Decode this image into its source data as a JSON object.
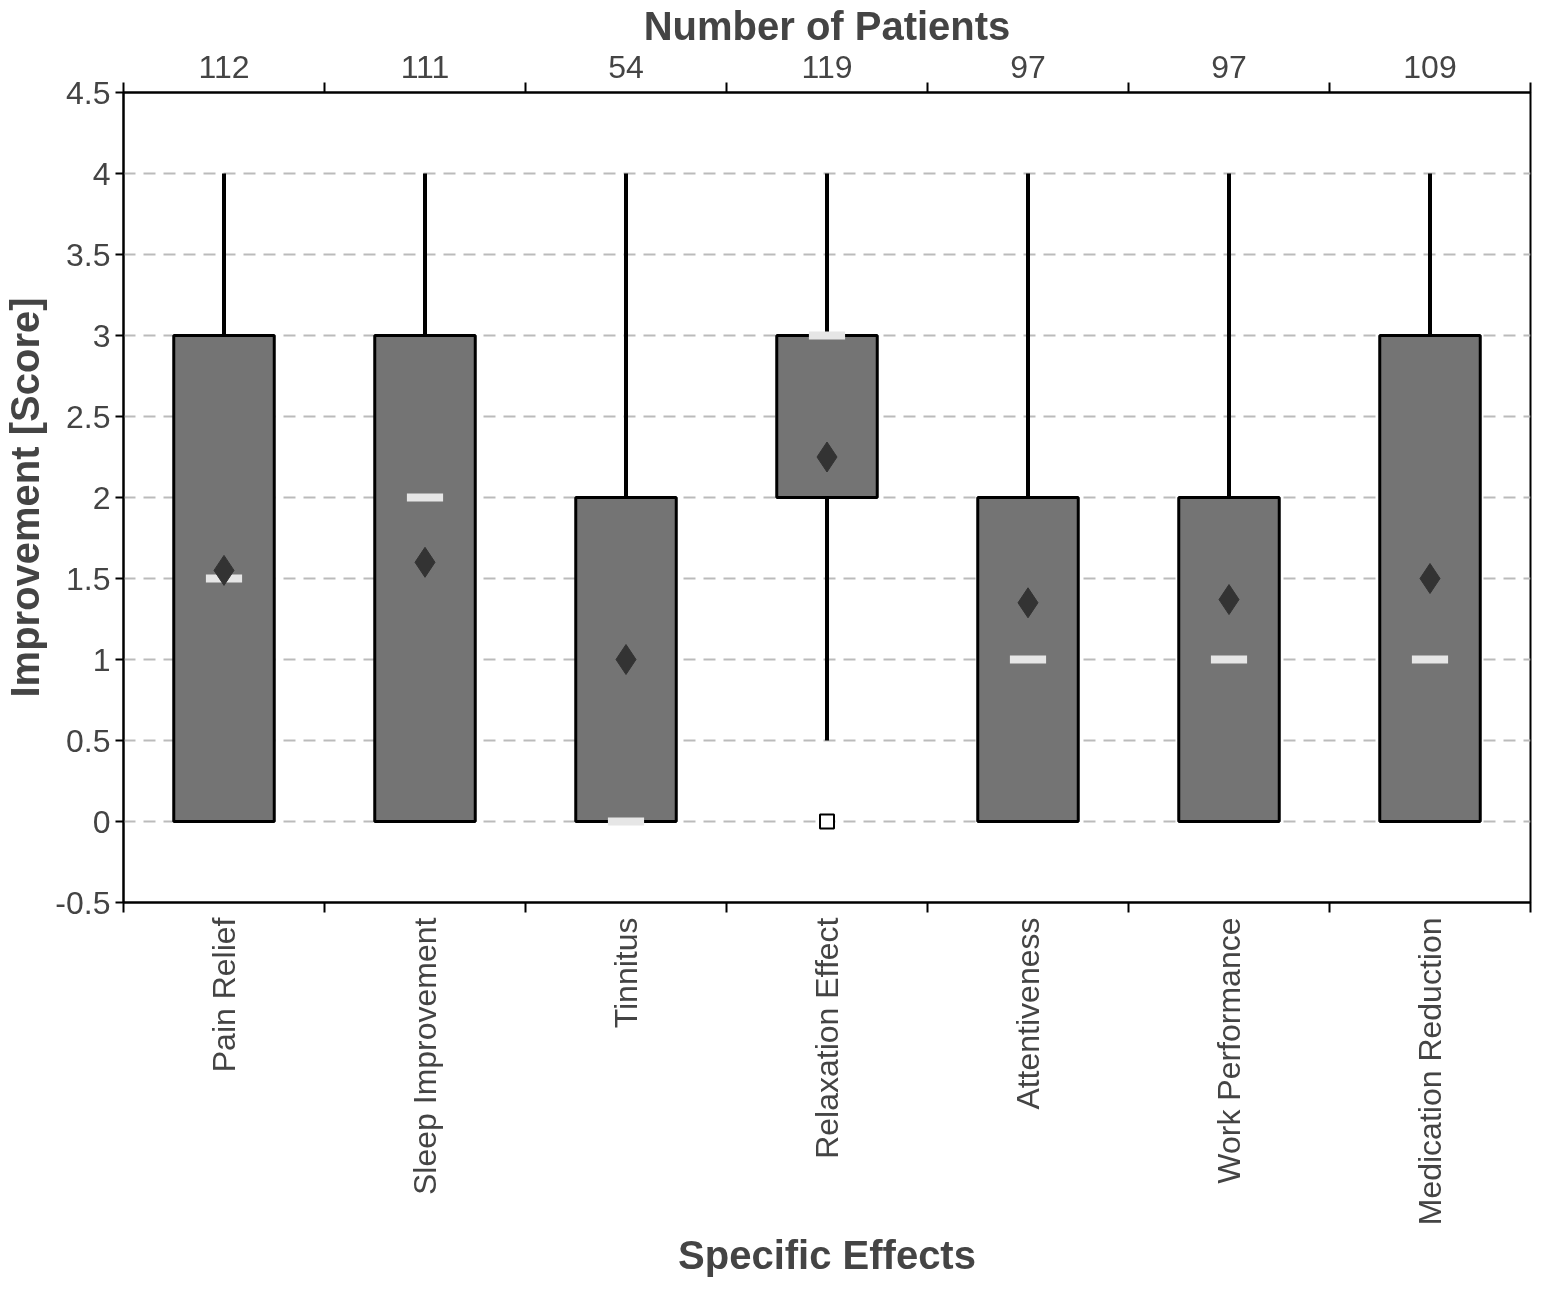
{
  "chart_data": {
    "type": "box",
    "xlabel": "Specific Effects",
    "ylabel": "Improvement [Score]",
    "x2label": "Number of Patients",
    "categories": [
      "Pain Relief",
      "Sleep Improvement",
      "Tinnitus",
      "Relaxation Effect",
      "Attentiveness",
      "Work Performance",
      "Medication Reduction"
    ],
    "color": "#747474",
    "boxes": [
      {
        "low": 0,
        "q1": 0,
        "median": 1.5,
        "q3": 3,
        "high": 4,
        "mean": 1.55
      },
      {
        "low": 0,
        "q1": 0,
        "median": 2,
        "q3": 3,
        "high": 4,
        "mean": 1.6
      },
      {
        "low": 0,
        "q1": 0,
        "median": 0,
        "q3": 2,
        "high": 4,
        "mean": 1.0
      },
      {
        "low": 0.5,
        "q1": 2,
        "median": 3,
        "q3": 3,
        "high": 4,
        "mean": 2.25,
        "outliers": [
          0
        ]
      },
      {
        "low": 0,
        "q1": 0,
        "median": 1,
        "q3": 2,
        "high": 4,
        "mean": 1.35
      },
      {
        "low": 0,
        "q1": 0,
        "median": 1,
        "q3": 2,
        "high": 4,
        "mean": 1.37
      },
      {
        "low": 0,
        "q1": 0,
        "median": 1,
        "q3": 3,
        "high": 4,
        "mean": 1.5
      }
    ],
    "annotations": [
      "112",
      "111",
      "54",
      "119",
      "97",
      "97",
      "109"
    ],
    "ylim": [
      -0.5,
      4.5
    ],
    "yticks": [
      -0.5,
      0,
      0.5,
      1,
      1.5,
      2,
      2.5,
      3,
      3.5,
      4,
      4.5
    ],
    "grid": "y"
  }
}
